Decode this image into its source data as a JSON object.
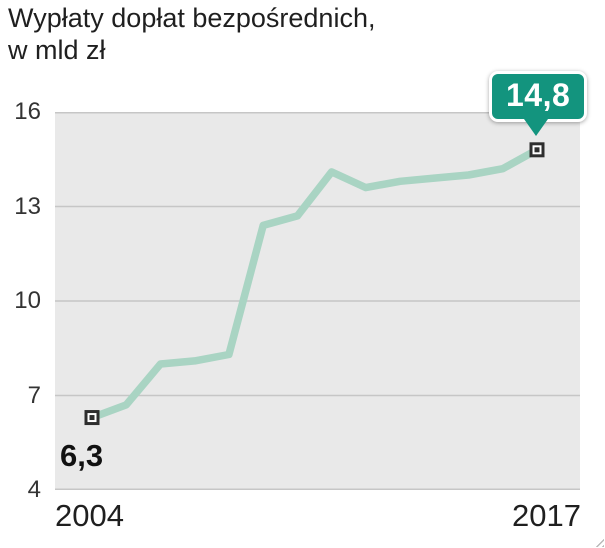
{
  "title": {
    "line1": "Wypłaty dopłat bezpośrednich,",
    "line2": "w mld zł"
  },
  "x_axis": {
    "start_label": "2004",
    "end_label": "2017"
  },
  "annotations": {
    "start_value": "6,3",
    "end_value": "14,8"
  },
  "colors": {
    "line": "#a9d4c3",
    "badge": "#13947e",
    "plot_bg": "#e9e9e9",
    "gridline": "#c6c6c6",
    "marker": "#2e2e2e",
    "text": "#222222"
  },
  "chart_data": {
    "type": "line",
    "title": "Wypłaty dopłat bezpośrednich, w mld zł",
    "xlabel": "",
    "ylabel": "mld zł",
    "x": [
      2004,
      2005,
      2006,
      2007,
      2008,
      2009,
      2010,
      2011,
      2012,
      2013,
      2014,
      2015,
      2016,
      2017
    ],
    "values": [
      6.3,
      6.7,
      8.0,
      8.1,
      8.3,
      12.4,
      12.7,
      14.1,
      13.6,
      13.8,
      13.9,
      14.0,
      14.2,
      14.8
    ],
    "ylim": [
      4,
      16
    ],
    "yticks": [
      16,
      13,
      10,
      7,
      4
    ],
    "xtick_labels": [
      "2004",
      "2017"
    ],
    "grid": true,
    "legend": false,
    "data_labels": {
      "first": "6,3",
      "last": "14,8"
    }
  }
}
